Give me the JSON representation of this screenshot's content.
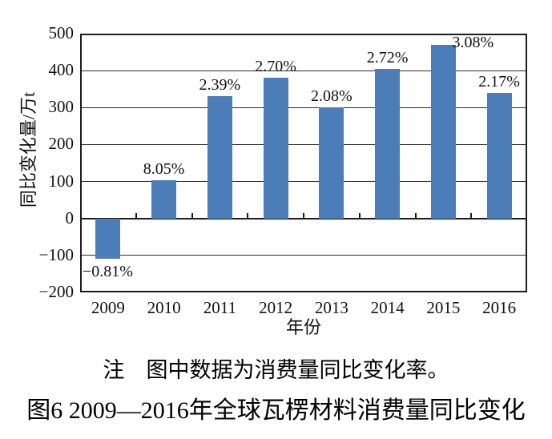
{
  "figure": {
    "note": "注　图中数据为消费量同比变化率。",
    "caption": "图6  2009—2016年全球瓦楞材料消费量同比变化"
  },
  "chart_data": {
    "type": "bar",
    "categories": [
      "2009",
      "2010",
      "2011",
      "2012",
      "2013",
      "2014",
      "2015",
      "2016"
    ],
    "values": [
      -110,
      103,
      330,
      380,
      300,
      405,
      470,
      340
    ],
    "point_labels": [
      "−0.81%",
      "8.05%",
      "2.39%",
      "2.70%",
      "2.08%",
      "2.72%",
      "3.08%",
      "2.17%"
    ],
    "label_dx": [
      0,
      0,
      0,
      0,
      0,
      0,
      37,
      0
    ],
    "label_dy": [
      0,
      0,
      0,
      0,
      0,
      0,
      11,
      0
    ],
    "title": "",
    "xlabel": "年份",
    "ylabel": "同比变化量/万t",
    "ylim": [
      -200,
      500
    ],
    "ytick_step": 100,
    "grid": true,
    "legend": "none",
    "bar_color": "#4d7db9",
    "axis_color": "#1c1c1c",
    "values_unit": "万t"
  }
}
